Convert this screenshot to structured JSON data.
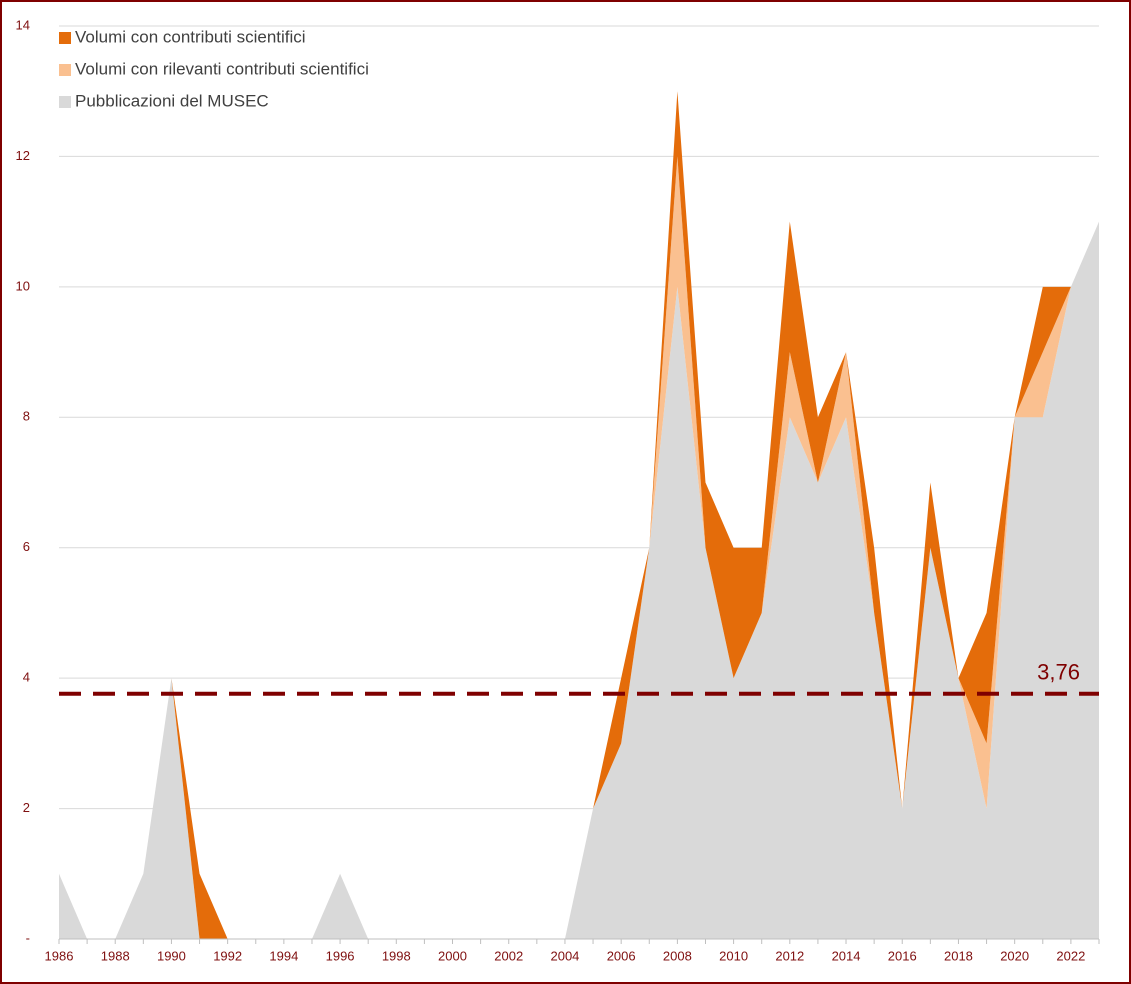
{
  "chart_data": {
    "type": "area",
    "stacked": true,
    "x": [
      1986,
      1987,
      1988,
      1989,
      1990,
      1991,
      1992,
      1993,
      1994,
      1995,
      1996,
      1997,
      1998,
      1999,
      2000,
      2001,
      2002,
      2003,
      2004,
      2005,
      2006,
      2007,
      2008,
      2009,
      2010,
      2011,
      2012,
      2013,
      2014,
      2015,
      2016,
      2017,
      2018,
      2019,
      2020,
      2021,
      2022,
      2023
    ],
    "series": [
      {
        "name": "Pubblicazioni del MUSEC",
        "color": "#d9d9d9",
        "values": [
          1,
          0,
          0,
          1,
          4,
          0,
          0,
          0,
          0,
          0,
          1,
          0,
          0,
          0,
          0,
          0,
          0,
          0,
          0,
          2,
          3,
          6,
          10,
          6,
          4,
          5,
          8,
          7,
          8,
          5,
          2,
          6,
          4,
          2,
          8,
          8,
          10,
          11
        ]
      },
      {
        "name": "Volumi con rilevanti contributi scientifici",
        "color": "#fac090",
        "values": [
          0,
          0,
          0,
          0,
          0,
          0,
          0,
          0,
          0,
          0,
          0,
          0,
          0,
          0,
          0,
          0,
          0,
          0,
          0,
          0,
          0,
          0,
          2,
          0,
          0,
          0,
          1,
          0,
          1,
          0,
          0,
          0,
          0,
          1,
          0,
          1,
          0,
          0
        ]
      },
      {
        "name": "Volumi con contributi scientifici",
        "color": "#e46c0a",
        "values": [
          0,
          0,
          0,
          0,
          0,
          1,
          0,
          0,
          0,
          0,
          0,
          0,
          0,
          0,
          0,
          0,
          0,
          0,
          0,
          0,
          1,
          0,
          1,
          1,
          2,
          1,
          2,
          1,
          0,
          1,
          0,
          1,
          0,
          2,
          0,
          1,
          0,
          0
        ]
      }
    ],
    "xlim": [
      1986,
      2023
    ],
    "xticks": [
      1986,
      1988,
      1990,
      1992,
      1994,
      1996,
      1998,
      2000,
      2002,
      2004,
      2006,
      2008,
      2010,
      2012,
      2014,
      2016,
      2018,
      2020,
      2022
    ],
    "ylim": [
      0,
      14
    ],
    "yticks": [
      {
        "value": 0,
        "label": "-"
      },
      2,
      4,
      6,
      8,
      10,
      12,
      14
    ],
    "grid": true,
    "legend": "top-left",
    "reference_line": {
      "value": 3.76,
      "label": "3,76",
      "color": "#7f0000"
    }
  }
}
